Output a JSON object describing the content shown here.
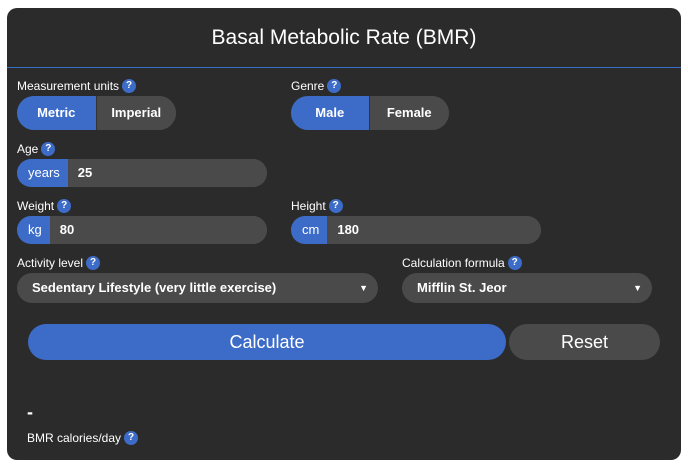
{
  "title": "Basal Metabolic Rate (BMR)",
  "help_icon_glyph": "?",
  "units": {
    "label": "Measurement units",
    "options": [
      "Metric",
      "Imperial"
    ],
    "selected": "Metric"
  },
  "genre": {
    "label": "Genre",
    "options": [
      "Male",
      "Female"
    ],
    "selected": "Male"
  },
  "age": {
    "label": "Age",
    "unit": "years",
    "value": "25"
  },
  "weight": {
    "label": "Weight",
    "unit": "kg",
    "value": "80"
  },
  "height": {
    "label": "Height",
    "unit": "cm",
    "value": "180"
  },
  "activity": {
    "label": "Activity level",
    "selected": "Sedentary Lifestyle (very little exercise)"
  },
  "formula": {
    "label": "Calculation formula",
    "selected": "Mifflin St. Jeor"
  },
  "buttons": {
    "calculate": "Calculate",
    "reset": "Reset"
  },
  "result": {
    "value": "-",
    "label": "BMR calories/day"
  },
  "colors": {
    "accent": "#3d6cc8",
    "panel": "#2b2b2b",
    "control": "#4a4a4a"
  },
  "icons": {
    "help": "help-icon",
    "dropdown": "chevron-down-icon"
  }
}
